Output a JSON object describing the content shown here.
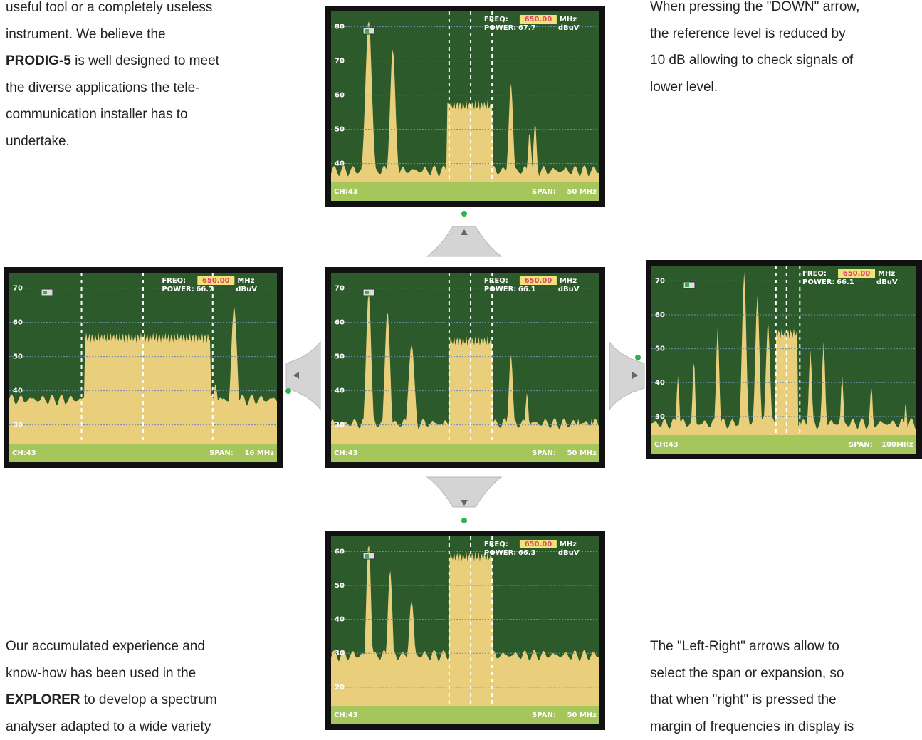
{
  "text_blocks": [
    {
      "lines": [
        "useful tool or a completely useless",
        "instrument. We believe the",
        {
          "bold": "PRODIG-5",
          "text": " is well designed to meet"
        },
        "the diverse applications the tele-",
        "communication installer has to",
        "undertake."
      ]
    },
    {
      "lines": [
        "When pressing the \"DOWN\" arrow,",
        "the reference level is reduced by",
        "10 dB allowing to check signals of",
        "lower level."
      ]
    },
    {
      "lines": [
        "Our accumulated experience and",
        "know-how has been used in the",
        {
          "bold": "EXPLORER",
          "text": " to develop a spectrum"
        },
        "analyser adapted to a wide variety"
      ]
    },
    {
      "lines": [
        "The \"Left-Right\" arrows allow to",
        "select the span or expansion, so",
        "that when \"right\" is pressed the",
        "margin of frequencies in display is"
      ]
    }
  ],
  "screens": [
    {
      "yticks": [
        "80",
        "70",
        "60",
        "50",
        "40"
      ],
      "freq_label": "FREQ:",
      "freq": "650.00",
      "freq_unit": "MHz",
      "power_label": "POWER:",
      "power": "67.7",
      "power_unit": "dBuV",
      "channel": "CH:43",
      "span_label": "SPAN:",
      "span": "50 MHz"
    },
    {
      "yticks": [
        "70",
        "60",
        "50",
        "40",
        "30"
      ],
      "freq_label": "FREQ:",
      "freq": "650.00",
      "freq_unit": "MHz",
      "power_label": "POWER:",
      "power": "66.7",
      "power_unit": "dBuV",
      "channel": "CH:43",
      "span_label": "SPAN:",
      "span": "16 MHz"
    },
    {
      "yticks": [
        "70",
        "60",
        "50",
        "40",
        "30"
      ],
      "freq_label": "FREQ:",
      "freq": "650.00",
      "freq_unit": "MHz",
      "power_label": "POWER:",
      "power": "66.1",
      "power_unit": "dBuV",
      "channel": "CH:43",
      "span_label": "SPAN:",
      "span": "50 MHz"
    },
    {
      "yticks": [
        "70",
        "60",
        "50",
        "40",
        "30"
      ],
      "freq_label": "FREQ:",
      "freq": "650.00",
      "freq_unit": "MHz",
      "power_label": "POWER:",
      "power": "66.1",
      "power_unit": "dBuV",
      "channel": "CH:43",
      "span_label": "SPAN:",
      "span": "100MHz"
    },
    {
      "yticks": [
        "60",
        "50",
        "40",
        "30",
        "20"
      ],
      "freq_label": "FREQ:",
      "freq": "650.00",
      "freq_unit": "MHz",
      "power_label": "POWER:",
      "power": "66.3",
      "power_unit": "dBuV",
      "channel": "CH:43",
      "span_label": "SPAN:",
      "span": "50 MHz"
    }
  ]
}
